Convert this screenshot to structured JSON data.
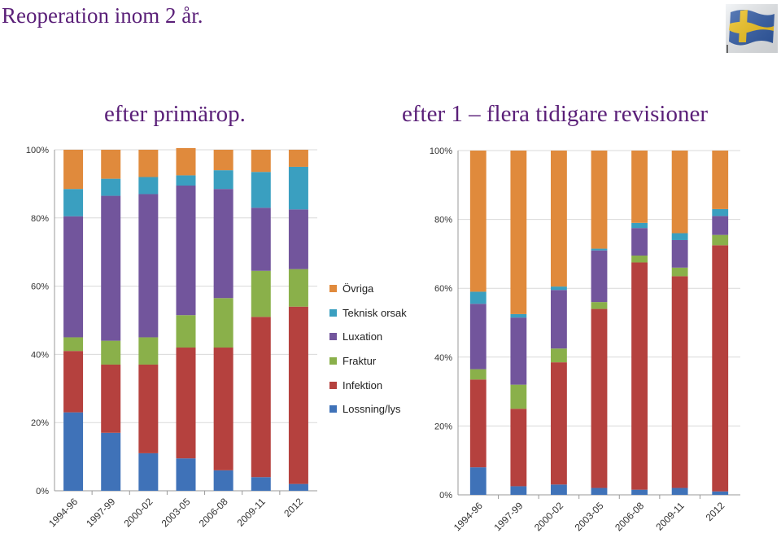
{
  "header": {
    "title": "Reoperation inom 2 år.",
    "flag_icon": "sweden-flag-icon",
    "flag_colors": {
      "blue": "#2e5aa8",
      "yellow": "#f5c518"
    }
  },
  "left_panel": {
    "subtitle": "efter primärop."
  },
  "right_panel": {
    "subtitle": "efter 1 – flera tidigare revisioner"
  },
  "legend": {
    "items": [
      {
        "label": "Övriga",
        "color": "#e08a3c"
      },
      {
        "label": "Teknisk orsak",
        "color": "#3a9fc0"
      },
      {
        "label": "Luxation",
        "color": "#72559c"
      },
      {
        "label": "Fraktur",
        "color": "#8ab04a"
      },
      {
        "label": "Infektion",
        "color": "#b5413e"
      },
      {
        "label": "Lossning/lys",
        "color": "#3f72b8"
      }
    ]
  },
  "chart_data": [
    {
      "type": "bar",
      "stacked": true,
      "categories": [
        "1994-96",
        "1997-99",
        "2000-02",
        "2003-05",
        "2006-08",
        "2009-11",
        "2012"
      ],
      "yticks": [
        "0%",
        "20%",
        "40%",
        "60%",
        "80%",
        "100%"
      ],
      "ylim": [
        0,
        100
      ],
      "series": [
        {
          "name": "Lossning/lys",
          "color": "#3f72b8",
          "values": [
            23,
            17,
            11,
            9.5,
            6,
            4,
            2
          ]
        },
        {
          "name": "Infektion",
          "color": "#b5413e",
          "values": [
            18,
            20,
            26,
            32.5,
            36,
            47,
            52
          ]
        },
        {
          "name": "Fraktur",
          "color": "#8ab04a",
          "values": [
            4,
            7,
            8,
            9.5,
            14.5,
            13.5,
            11
          ]
        },
        {
          "name": "Luxation",
          "color": "#72559c",
          "values": [
            35.5,
            42.5,
            42,
            38,
            32,
            18.5,
            17.5
          ]
        },
        {
          "name": "Teknisk orsak",
          "color": "#3a9fc0",
          "values": [
            8,
            5,
            5,
            3,
            5.5,
            10.5,
            12.5
          ]
        },
        {
          "name": "Övriga",
          "color": "#e08a3c",
          "values": [
            11.5,
            8.5,
            8,
            8,
            6,
            6.5,
            5
          ]
        }
      ]
    },
    {
      "type": "bar",
      "stacked": true,
      "categories": [
        "1994-96",
        "1997-99",
        "2000-02",
        "2003-05",
        "2006-08",
        "2009-11",
        "2012"
      ],
      "yticks": [
        "0%",
        "20%",
        "40%",
        "60%",
        "80%",
        "100%"
      ],
      "ylim": [
        0,
        100
      ],
      "series": [
        {
          "name": "Lossning/lys",
          "color": "#3f72b8",
          "values": [
            8,
            2.5,
            3,
            2,
            1.5,
            2,
            1
          ]
        },
        {
          "name": "Infektion",
          "color": "#b5413e",
          "values": [
            25.5,
            22.5,
            35.5,
            52,
            66,
            61.5,
            71.5
          ]
        },
        {
          "name": "Fraktur",
          "color": "#8ab04a",
          "values": [
            3,
            7,
            4,
            2,
            2,
            2.5,
            3
          ]
        },
        {
          "name": "Luxation",
          "color": "#72559c",
          "values": [
            19,
            19.5,
            17,
            15,
            8,
            8,
            5.5
          ]
        },
        {
          "name": "Teknisk orsak",
          "color": "#3a9fc0",
          "values": [
            3.5,
            1,
            1,
            0.5,
            1.5,
            2,
            2
          ]
        },
        {
          "name": "Övriga",
          "color": "#e08a3c",
          "values": [
            41,
            47.5,
            39.5,
            28.5,
            21,
            24,
            17
          ]
        }
      ]
    }
  ]
}
